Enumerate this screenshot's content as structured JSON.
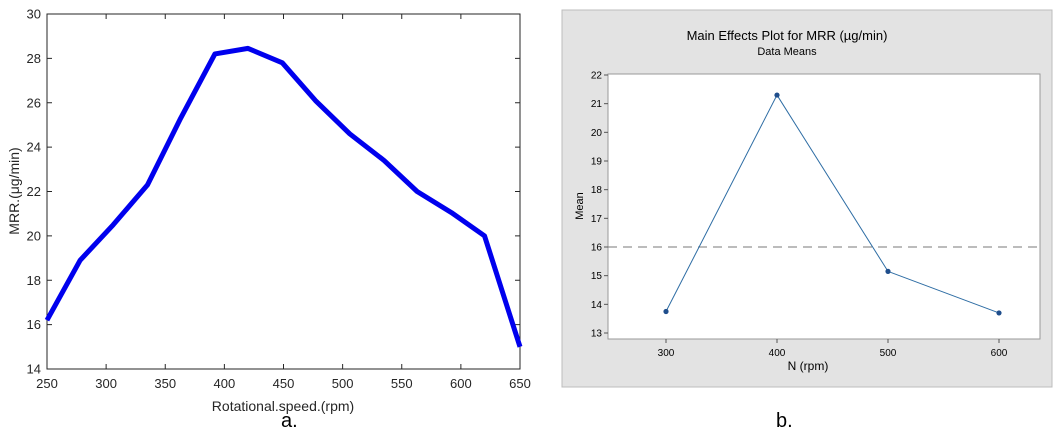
{
  "chart_data": [
    {
      "type": "line",
      "caption": "a.",
      "title": "",
      "xlabel": "Rotational.speed.(rpm)",
      "ylabel": "MRR.(μg/min)",
      "xlim": [
        250,
        650
      ],
      "ylim": [
        14,
        30
      ],
      "xticks": [
        250,
        300,
        350,
        400,
        450,
        500,
        550,
        600,
        650
      ],
      "yticks": [
        14,
        16,
        18,
        20,
        22,
        24,
        26,
        28,
        30
      ],
      "grid": false,
      "series": [
        {
          "color": "#0000ee",
          "x": [
            250,
            278,
            306,
            335,
            363,
            392,
            420,
            449,
            477,
            506,
            535,
            563,
            592,
            620,
            650
          ],
          "y": [
            16.2,
            18.9,
            20.5,
            22.3,
            25.3,
            28.2,
            28.45,
            27.8,
            26.1,
            24.6,
            23.4,
            22.0,
            21.05,
            20.0,
            15.0
          ]
        }
      ]
    },
    {
      "type": "line",
      "caption": "b.",
      "title": "Main Effects Plot for MRR (µg/min)",
      "subtitle": "Data Means",
      "xlabel": "N (rpm)",
      "ylabel": "Mean",
      "categories": [
        "300",
        "400",
        "500",
        "600"
      ],
      "ylim": [
        13,
        22
      ],
      "yticks": [
        13,
        14,
        15,
        16,
        17,
        18,
        19,
        20,
        21,
        22
      ],
      "reference_line": 16.0,
      "grid": false,
      "series": [
        {
          "color": "#2e6da4",
          "values": [
            13.75,
            21.3,
            15.15,
            13.7
          ]
        }
      ]
    }
  ]
}
